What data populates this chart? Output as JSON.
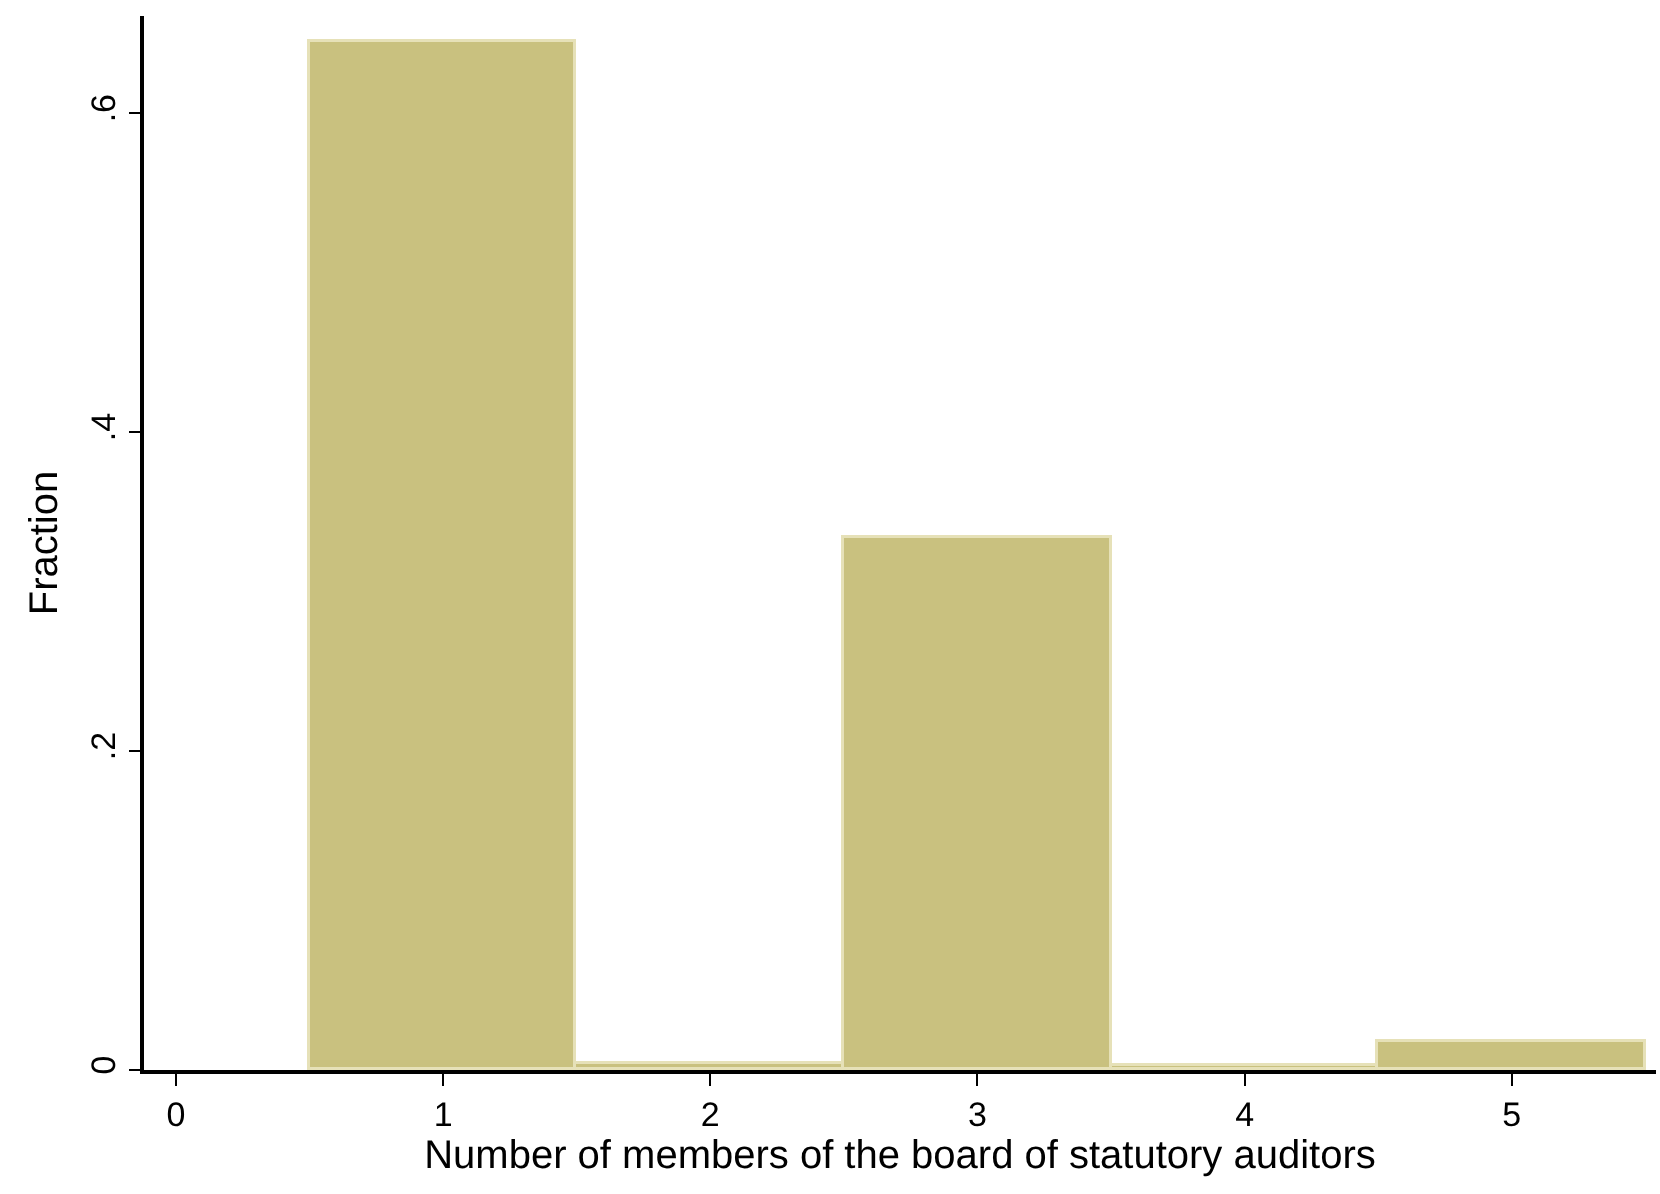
{
  "chart_data": {
    "type": "histogram",
    "xlabel": "Number of members of the board of statutory auditors",
    "ylabel": "Fraction",
    "bins": [
      0.5,
      1.5,
      2.5,
      3.5,
      4.5,
      5.5
    ],
    "values": [
      0.645,
      0.004,
      0.334,
      0.002,
      0.018
    ],
    "color": "#c9c17f",
    "xlim": [
      -0.12,
      5.54
    ],
    "xticks": [
      0,
      1,
      2,
      3,
      4,
      5
    ],
    "ylim": [
      0,
      0.661
    ],
    "yticks": [
      0,
      {
        "value": 0.2,
        "label": ".2"
      },
      {
        "value": 0.4,
        "label": ".4"
      },
      {
        "value": 0.6,
        "label": ".6"
      }
    ],
    "grid": false
  }
}
